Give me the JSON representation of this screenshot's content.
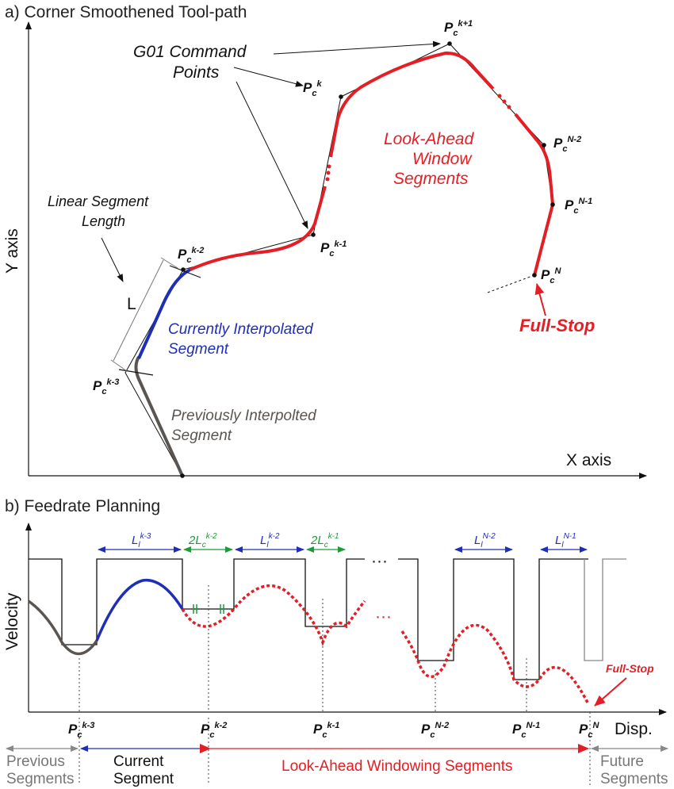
{
  "panel_a": {
    "title": "a) Corner Smoothened Tool-path",
    "y_axis_label": "Y axis",
    "x_axis_label": "X axis",
    "g01_label_line1": "G01 Command",
    "g01_label_line2": "Points",
    "linear_label_line1": "Linear Segment",
    "linear_label_line2": "Length",
    "length_symbol": "L",
    "current_line1": "Currently Interpolated",
    "current_line2": "Segment",
    "previous_line1": "Previously Interpolted",
    "previous_line2": "Segment",
    "lookahead_line1": "Look-Ahead",
    "lookahead_line2": "Window",
    "lookahead_line3": "Segments",
    "full_stop": "Full-Stop",
    "points": {
      "base": "P",
      "sub": "c",
      "k_minus_3": "k-3",
      "k_minus_2": "k-2",
      "k_minus_1": "k-1",
      "k": "k",
      "k_plus_1": "k+1",
      "n_minus_2": "N-2",
      "n_minus_1": "N-1",
      "n": "N"
    }
  },
  "panel_b": {
    "title": "b) Feedrate Planning",
    "y_axis_label": "Velocity",
    "x_axis_label": "Disp.",
    "full_stop": "Full-Stop",
    "ellipsis": "···",
    "segments": {
      "l_base": "L",
      "l_sub": "l",
      "two_l": "2L",
      "c_sub": "c",
      "k3": "k-3",
      "k2": "k-2",
      "k1": "k-1",
      "n2": "N-2",
      "n1": "N-1"
    },
    "ticks": {
      "base": "P",
      "sub": "c",
      "k3": "k-3",
      "k2": "k-2",
      "k1": "k-1",
      "n2": "N-2",
      "n1": "N-1",
      "n": "N"
    },
    "bottom": {
      "previous_line1": "Previous",
      "previous_line2": "Segments",
      "current_line1": "Current",
      "current_line2": "Segment",
      "lookahead": "Look-Ahead Windowing Segments",
      "future_line1": "Future",
      "future_line2": "Segments"
    }
  },
  "colors": {
    "red": "#e31e24",
    "blue": "#1f2fb5",
    "green": "#1f9a3a",
    "grey": "#5a5550",
    "black": "#111111"
  }
}
